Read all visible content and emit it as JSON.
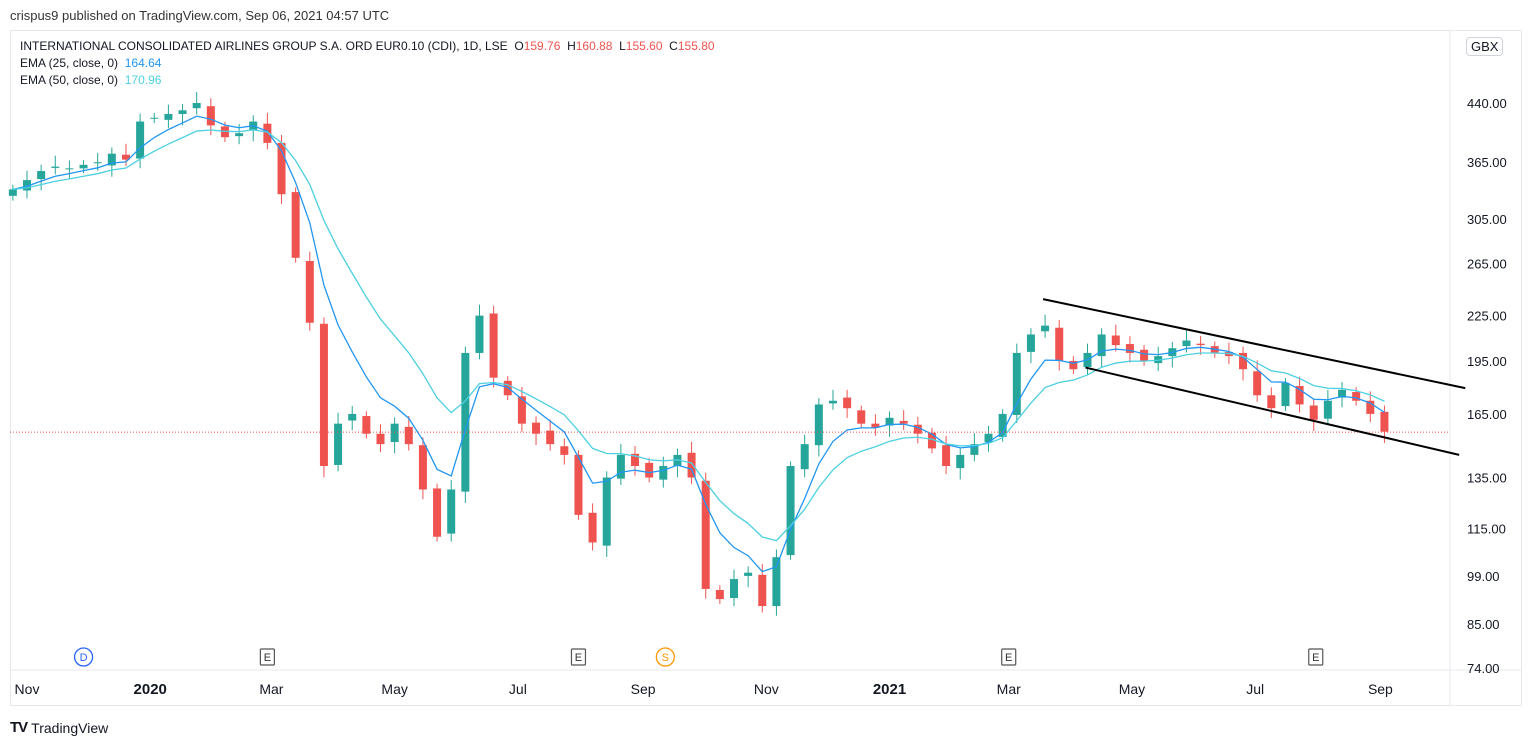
{
  "caption": "crispus9 published on TradingView.com, Sep 06, 2021 04:57 UTC",
  "legend": {
    "symbol": "INTERNATIONAL CONSOLIDATED AIRLINES GROUP S.A. ORD EUR0.10 (CDI), 1D, LSE",
    "o_label": "O",
    "o": "159.76",
    "h_label": "H",
    "h": "160.88",
    "l_label": "L",
    "l": "155.60",
    "c_label": "C",
    "c": "155.80",
    "ema25_label": "EMA (25, close, 0)",
    "ema25_value": "164.64",
    "ema50_label": "EMA (50, close, 0)",
    "ema50_value": "170.96"
  },
  "currency": "GBX",
  "footer": {
    "brand": "TradingView"
  },
  "colors": {
    "up": "#26a69a",
    "down": "#ef5350",
    "ema25": "#2196f3",
    "ema50": "#4dd0e1",
    "trendline": "#000000",
    "last_price_line": "#ef5350"
  },
  "chart_data": {
    "type": "candlestick",
    "y_scale": "log",
    "ylim": [
      74,
      500
    ],
    "y_ticks": [
      "440.00",
      "365.00",
      "305.00",
      "265.00",
      "225.00",
      "195.00",
      "165.00",
      "135.00",
      "115.00",
      "99.00",
      "85.00",
      "74.00"
    ],
    "x_ticks": [
      {
        "label": "Nov",
        "date": "2019-11-01"
      },
      {
        "label": "2020",
        "date": "2020-01-01"
      },
      {
        "label": "Mar",
        "date": "2020-03-01"
      },
      {
        "label": "May",
        "date": "2020-05-01"
      },
      {
        "label": "Jul",
        "date": "2020-07-01"
      },
      {
        "label": "Sep",
        "date": "2020-09-01"
      },
      {
        "label": "Nov",
        "date": "2020-11-01"
      },
      {
        "label": "2021",
        "date": "2021-01-01"
      },
      {
        "label": "Mar",
        "date": "2021-03-01"
      },
      {
        "label": "May",
        "date": "2021-05-01"
      },
      {
        "label": "Jul",
        "date": "2021-07-01"
      },
      {
        "label": "Sep",
        "date": "2021-09-01"
      }
    ],
    "series_start": "2019-10-25",
    "series_interval": "1W",
    "close": [
      335,
      345,
      355,
      360,
      358,
      362,
      365,
      375,
      368,
      415,
      420,
      425,
      430,
      440,
      410,
      395,
      400,
      415,
      388,
      330,
      270,
      220,
      140,
      160,
      165,
      155,
      150,
      160,
      150,
      130,
      112,
      130,
      200,
      225,
      185,
      175,
      160,
      155,
      150,
      145,
      120,
      110,
      135,
      145,
      140,
      135,
      140,
      145,
      135,
      95,
      92,
      98,
      100,
      90,
      105,
      140,
      150,
      170,
      172,
      168,
      160,
      158,
      163,
      160,
      155,
      148,
      140,
      145,
      150,
      155,
      165,
      200,
      212,
      218,
      195,
      190,
      200,
      212,
      205,
      200,
      195,
      198,
      203,
      208,
      205,
      200,
      198,
      190,
      175,
      168,
      182,
      170,
      162,
      172,
      178,
      172,
      165,
      156
    ],
    "last_price": 155.8,
    "indicators": [
      {
        "name": "EMA (25, close, 0)",
        "period": 25
      },
      {
        "name": "EMA (50, close, 0)",
        "period": 50
      }
    ],
    "trendlines": [
      {
        "from": {
          "date": "2021-03-18",
          "price": 237
        },
        "to": {
          "date": "2021-10-13",
          "price": 179
        }
      },
      {
        "from": {
          "date": "2021-04-08",
          "price": 191
        },
        "to": {
          "date": "2021-10-10",
          "price": 145
        }
      }
    ],
    "events": [
      {
        "type": "D",
        "date": "2019-11-29",
        "color": "#2962ff"
      },
      {
        "type": "E",
        "date": "2020-02-28"
      },
      {
        "type": "E",
        "date": "2020-07-31"
      },
      {
        "type": "S",
        "date": "2020-09-12",
        "color": "#ff9800"
      },
      {
        "type": "E",
        "date": "2021-03-01"
      },
      {
        "type": "E",
        "date": "2021-07-31"
      }
    ]
  }
}
